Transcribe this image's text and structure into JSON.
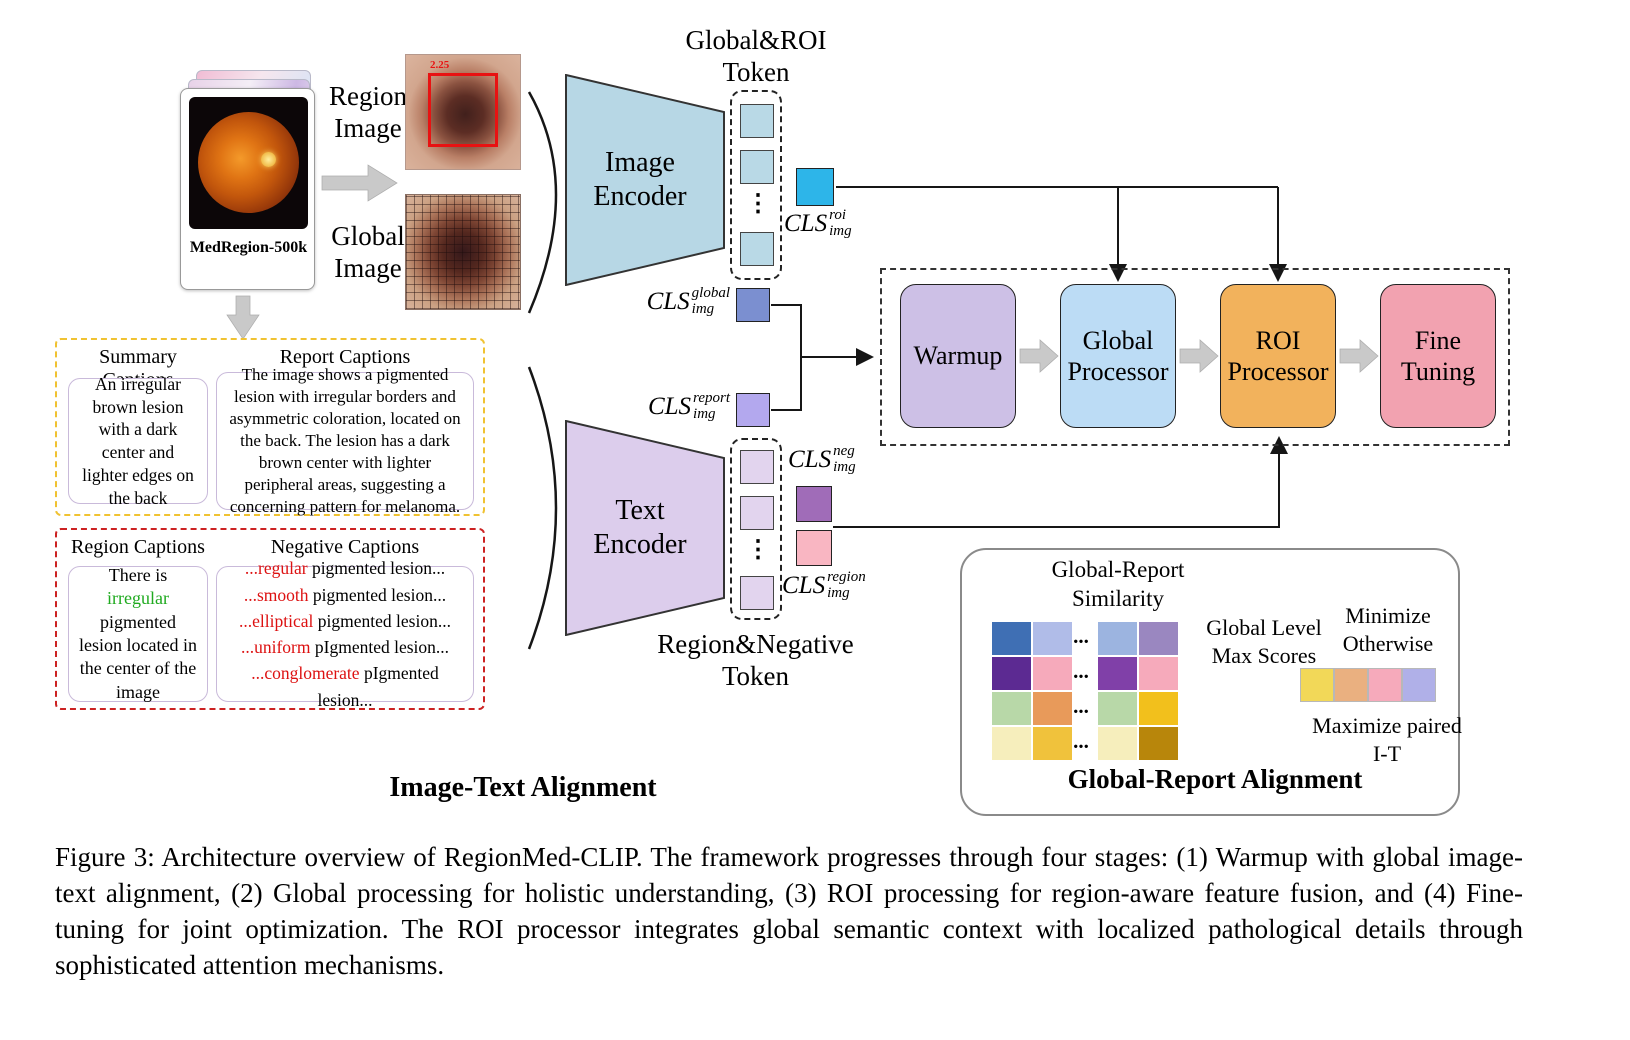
{
  "dataset": {
    "label": "MedRegion-500k"
  },
  "inputs": {
    "region_image_label": "Region Image",
    "global_image_label": "Global Image",
    "region_box_label": "2.25"
  },
  "encoders": {
    "image_encoder": "Image Encoder",
    "text_encoder": "Text Encoder"
  },
  "tokens": {
    "global_roi_title": "Global&ROI Token",
    "region_negative_title": "Region&Negative Token",
    "vertical_ellipsis": "⋮"
  },
  "cls": {
    "roi": {
      "base": "CLS",
      "sup": "roi",
      "sub": "img"
    },
    "global": {
      "base": "CLS",
      "sup": "global",
      "sub": "img"
    },
    "report": {
      "base": "CLS",
      "sup": "report",
      "sub": "img"
    },
    "neg": {
      "base": "CLS",
      "sup": "neg",
      "sub": "img"
    },
    "region": {
      "base": "CLS",
      "sup": "region",
      "sub": "img"
    }
  },
  "stages": {
    "warmup": "Warmup",
    "global_processor": "Global Processor",
    "roi_processor": "ROI Processor",
    "fine_tuning": "Fine Tuning"
  },
  "captions": {
    "summary_title": "Summary Captions",
    "report_title": "Report Captions",
    "summary_text": "An irregular brown lesion with a dark center and lighter edges on the back",
    "report_text": "The image shows a pigmented lesion with irregular borders and asymmetric coloration, located on the back. The lesion has a dark brown center with lighter peripheral areas, suggesting a concerning pattern for melanoma.",
    "region_title": "Region Captions",
    "negative_title": "Negative Captions",
    "region_text": {
      "pre": "There is ",
      "green": "irregular",
      "rest": " pigmented lesion located in the center of the image"
    },
    "negative_lines": [
      {
        "red": "...regular",
        "rest": " pigmented lesion..."
      },
      {
        "red": "...smooth",
        "rest": " pigmented lesion..."
      },
      {
        "red": "...elliptical",
        "rest": " pigmented lesion..."
      },
      {
        "red": "...uniform",
        "rest": " pIgmented lesion..."
      },
      {
        "red": "...conglomerate",
        "rest": " pIgmented lesion..."
      }
    ]
  },
  "alignment": {
    "image_text_label": "Image-Text Alignment",
    "global_report": {
      "similarity_title": "Global-Report Similarity",
      "max_scores_label": "Global Level Max Scores",
      "minimize_label": "Minimize Otherwise",
      "maximize_label": "Maximize paired I-T",
      "panel_title": "Global-Report Alignment",
      "dots": "...",
      "left_grid": [
        [
          "#3f6fb4",
          "#b0bce8"
        ],
        [
          "#5c2a92",
          "#f6aabb"
        ],
        [
          "#b8d8a8",
          "#e89a5a"
        ],
        [
          "#f6eebc",
          "#f0c23c"
        ]
      ],
      "right_grid": [
        [
          "#9cb4e0",
          "#9a87c0"
        ],
        [
          "#8040a8",
          "#f6aabb"
        ],
        [
          "#b8d8a8",
          "#f2c01c"
        ],
        [
          "#f6eebc",
          "#b8860b"
        ]
      ],
      "output_row": [
        "#f2d858",
        "#eab080",
        "#f6aabb",
        "#b0b0e8"
      ]
    }
  },
  "figure_caption": "Figure 3: Architecture overview of RegionMed-CLIP. The framework progresses through four stages: (1) Warmup with global image-text alignment, (2) Global processing for holistic understanding, (3) ROI processing for region-aware feature fusion, and (4) Fine-tuning for joint optimization. The ROI processor integrates global semantic context with localized pathological details through sophisticated attention mechanisms.",
  "colors": {
    "image_encoder": "#b7d7e5",
    "text_encoder": "#dccdec",
    "image_token": "#b9d9e6",
    "text_token": "#e2d4ee",
    "cls_roi": "#2db5e9",
    "cls_global": "#7b8fd0",
    "cls_report": "#b3a8ee",
    "cls_neg": "#a06cb8",
    "cls_region": "#f9b6c2",
    "warmup": "#cdc0e6",
    "global_processor": "#bcdcf5",
    "roi_processor": "#f2b25c",
    "fine_tuning": "#f2a2b0",
    "summary_box_border": "#f0c232",
    "negative_box_border": "#cc2222",
    "highlight_green": "#1faa1f",
    "highlight_red": "#dd1111"
  }
}
